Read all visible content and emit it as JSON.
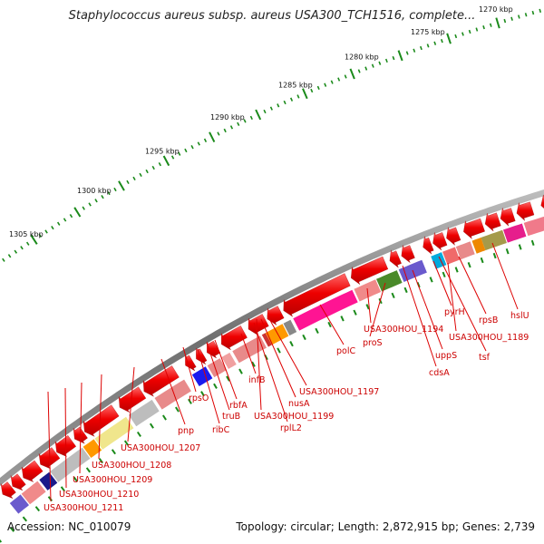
{
  "title": "Staphylococcus aureus subsp. aureus USA300_TCH1516, complete...",
  "footer": {
    "accession": "Accession: NC_010079",
    "stats": "Topology: circular; Length: 2,872,915 bp; Genes: 2,739"
  },
  "scale_ticks": [
    "1270 kbp",
    "1275 kbp",
    "1280 kbp",
    "1285 kbp",
    "1290 kbp",
    "1295 kbp",
    "1300 kbp",
    "1305 kbp"
  ],
  "gene_labels": [
    "hslU",
    "rpsB",
    "USA300HOU_1189",
    "tsf",
    "pyrH",
    "uppS",
    "cdsA",
    "USA300HOU_1194",
    "proS",
    "polC",
    "USA300HOU_1197",
    "nusA",
    "USA300HOU_1199",
    "rplL2",
    "infB",
    "rbfA",
    "truB",
    "ribC",
    "rpsO",
    "pnp",
    "USA300HOU_1207",
    "USA300HOU_1208",
    "USA300HOU_1209",
    "USA300HOU_1210",
    "USA300HOU_1211"
  ],
  "colors": {
    "backbone": "#7a7a7a",
    "tick": "#1a8a1a",
    "gene_arrow": "#ee0000",
    "label": "#cc0000"
  }
}
